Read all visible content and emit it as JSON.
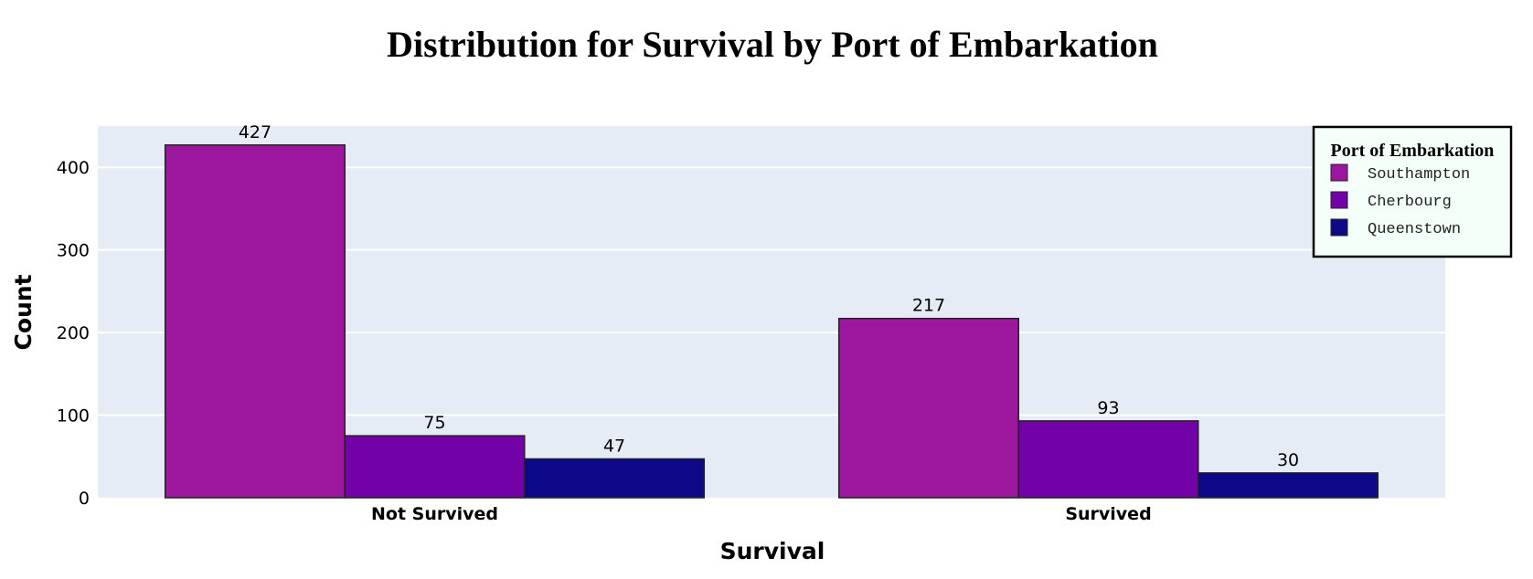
{
  "chart_data": {
    "type": "bar",
    "title": "Distribution for Survival by Port of Embarkation",
    "xlabel": "Survival",
    "ylabel": "Count",
    "categories": [
      "Not Survived",
      "Survived"
    ],
    "series": [
      {
        "name": "Southampton",
        "values": [
          427,
          217
        ],
        "color": "#9c179e"
      },
      {
        "name": "Cherbourg",
        "values": [
          75,
          93
        ],
        "color": "#7201a8"
      },
      {
        "name": "Queenstown",
        "values": [
          47,
          30
        ],
        "color": "#0d0887"
      }
    ],
    "ylim": [
      0,
      450
    ],
    "yticks": [
      0,
      100,
      200,
      300,
      400
    ],
    "legend": {
      "title": "Port of Embarkation",
      "placement": "top-right"
    },
    "grid": true,
    "plot_background": "#e5ecf6"
  }
}
